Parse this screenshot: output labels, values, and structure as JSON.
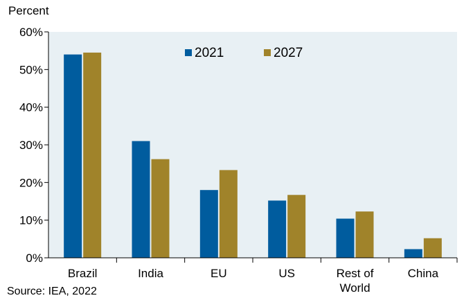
{
  "chart_data": {
    "type": "bar",
    "title": "",
    "xlabel": "",
    "ylabel": "Percent",
    "ylim": [
      0,
      60
    ],
    "y_ticks": [
      "0%",
      "10%",
      "20%",
      "30%",
      "40%",
      "50%",
      "60%"
    ],
    "categories": [
      "Brazil",
      "India",
      "EU",
      "US",
      "Rest of World",
      "China"
    ],
    "category_lines": [
      [
        "Brazil"
      ],
      [
        "India"
      ],
      [
        "EU"
      ],
      [
        "US"
      ],
      [
        "Rest of",
        "World"
      ],
      [
        "China"
      ]
    ],
    "series": [
      {
        "name": "2021",
        "color": "#005c9e",
        "values": [
          54,
          31,
          18,
          15.2,
          10.4,
          2.3
        ]
      },
      {
        "name": "2027",
        "color": "#a0832a",
        "values": [
          54.5,
          26.2,
          23.3,
          16.7,
          12.3,
          5.2
        ]
      }
    ],
    "grid": false,
    "legend_position": "top-center",
    "plot_background": "#e8f0f4",
    "source": "Source: IEA, 2022"
  }
}
